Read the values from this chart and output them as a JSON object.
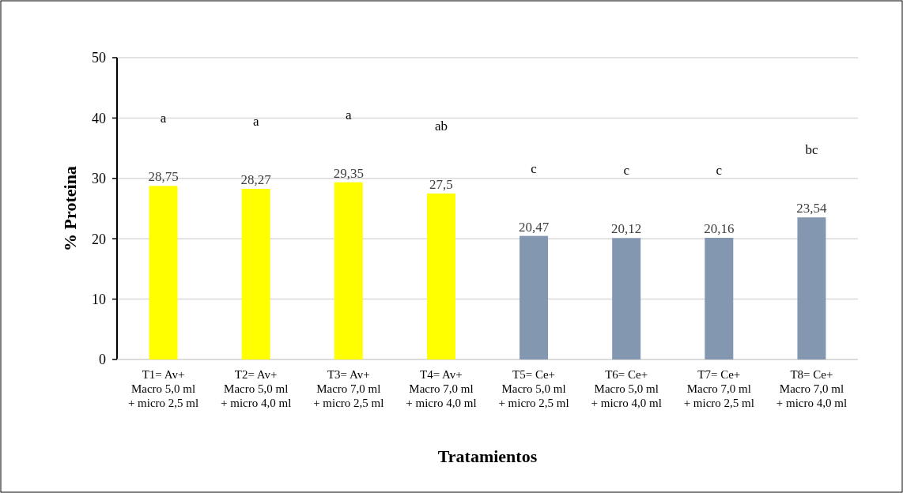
{
  "chart_data": {
    "type": "bar",
    "xlabel": "Tratamientos",
    "ylabel": "% Proteina",
    "categories": [
      "T1= Av+ Macro 5,0 ml + micro 2,5 ml",
      "T2= Av+ Macro 5,0 ml + micro 4,0 ml",
      "T3= Av+ Macro 7,0 ml + micro 2,5 ml",
      "T4= Av+ Macro 7,0 ml + micro 4,0 ml",
      "T5= Ce+ Macro 5,0 ml + micro 2,5 ml",
      "T6= Ce+ Macro 5,0 ml + micro 4,0 ml",
      "T7= Ce+ Macro 7,0 ml + micro 2,5 ml",
      "T8= Ce+ Macro 7,0 ml + micro 4,0 ml"
    ],
    "values": [
      28.75,
      28.27,
      29.35,
      27.5,
      20.47,
      20.12,
      20.16,
      23.54
    ],
    "colors": [
      "#ffff00",
      "#ffff00",
      "#ffff00",
      "#ffff00",
      "#8497b0",
      "#8497b0",
      "#8497b0",
      "#8497b0"
    ],
    "value_labels": [
      "28,75",
      "28,27",
      "29,35",
      "27,5",
      "20,47",
      "20,12",
      "20,16",
      "23,54"
    ],
    "ylim": [
      0,
      50
    ],
    "yticks": [
      0,
      10,
      20,
      30,
      40,
      50
    ],
    "grid": "y",
    "annotations": [
      "a",
      "a",
      "a",
      "ab",
      "c",
      "c",
      "c",
      "bc"
    ]
  }
}
